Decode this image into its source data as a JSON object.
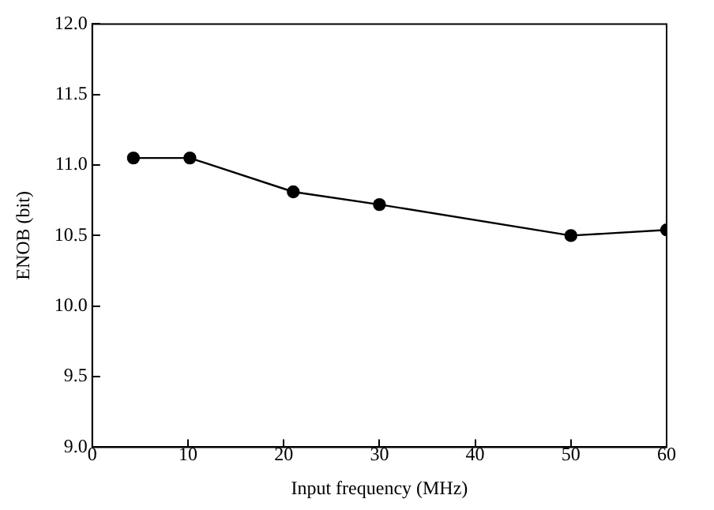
{
  "chart_data": {
    "type": "line",
    "xlabel": "Input frequency (MHz)",
    "ylabel": "ENOB (bit)",
    "x": [
      4.3,
      10.2,
      21,
      30,
      50,
      60
    ],
    "series": [
      {
        "color": "#000000",
        "values": [
          11.05,
          11.05,
          10.81,
          10.72,
          10.5,
          10.54
        ]
      }
    ],
    "xlim": [
      0,
      60
    ],
    "xticks": [
      0,
      10,
      20,
      30,
      40,
      50,
      60
    ],
    "ylim": [
      9,
      12
    ],
    "yticks": [
      {
        "value": 9,
        "label": "9.0"
      },
      {
        "value": 9.5,
        "label": "9.5"
      },
      {
        "value": 10,
        "label": "10.0"
      },
      {
        "value": 10.5,
        "label": "10.5"
      },
      {
        "value": 11,
        "label": "11.0"
      },
      {
        "value": 11.5,
        "label": "11.5"
      },
      {
        "value": 12,
        "label": "12.0"
      }
    ],
    "grid": false,
    "legend": false,
    "marker": "circle",
    "line_style": "solid"
  }
}
